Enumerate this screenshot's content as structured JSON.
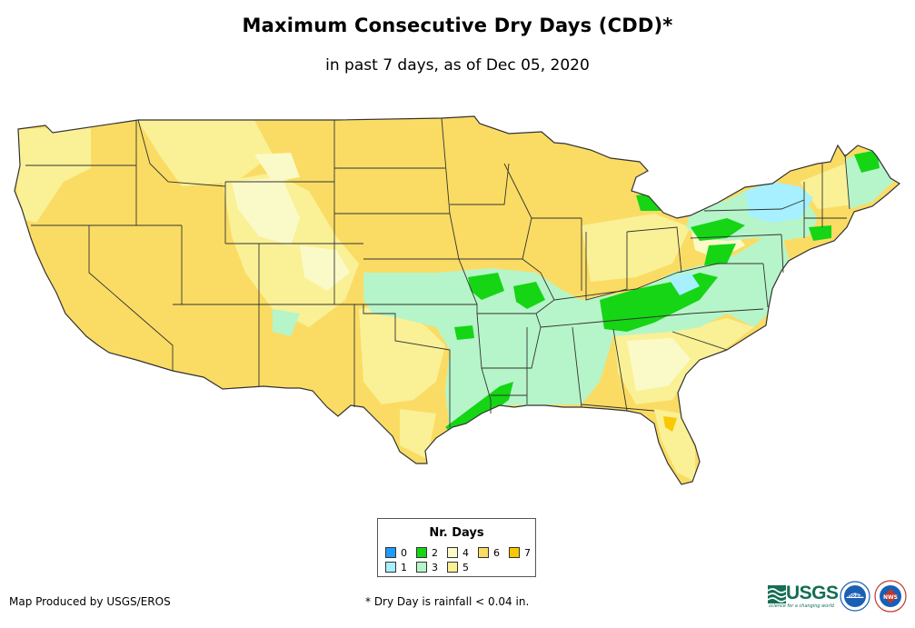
{
  "title": "Maximum Consecutive Dry Days (CDD)*",
  "subtitle": "in past 7 days, as of Dec 05, 2020",
  "legend": {
    "title": "Nr. Days",
    "items": [
      {
        "label": "0",
        "color": "#1e9bff"
      },
      {
        "label": "1",
        "color": "#a6f0ff"
      },
      {
        "label": "2",
        "color": "#15d515"
      },
      {
        "label": "3",
        "color": "#b6f5c9"
      },
      {
        "label": "4",
        "color": "#fafac8"
      },
      {
        "label": "5",
        "color": "#faf096"
      },
      {
        "label": "6",
        "color": "#fadc64"
      },
      {
        "label": "7",
        "color": "#fac800"
      }
    ]
  },
  "credit": "Map Produced by USGS/EROS",
  "footnote": "* Dry Day is rainfall < 0.04 in.",
  "logos": {
    "usgs": "USGS",
    "usgs_tagline": "science for a changing world",
    "noaa": "noaa",
    "nws": "NWS"
  },
  "colors": {
    "state_border": "#333333",
    "usgs_green": "#146e54",
    "noaa_blue": "#1a5fb4"
  }
}
